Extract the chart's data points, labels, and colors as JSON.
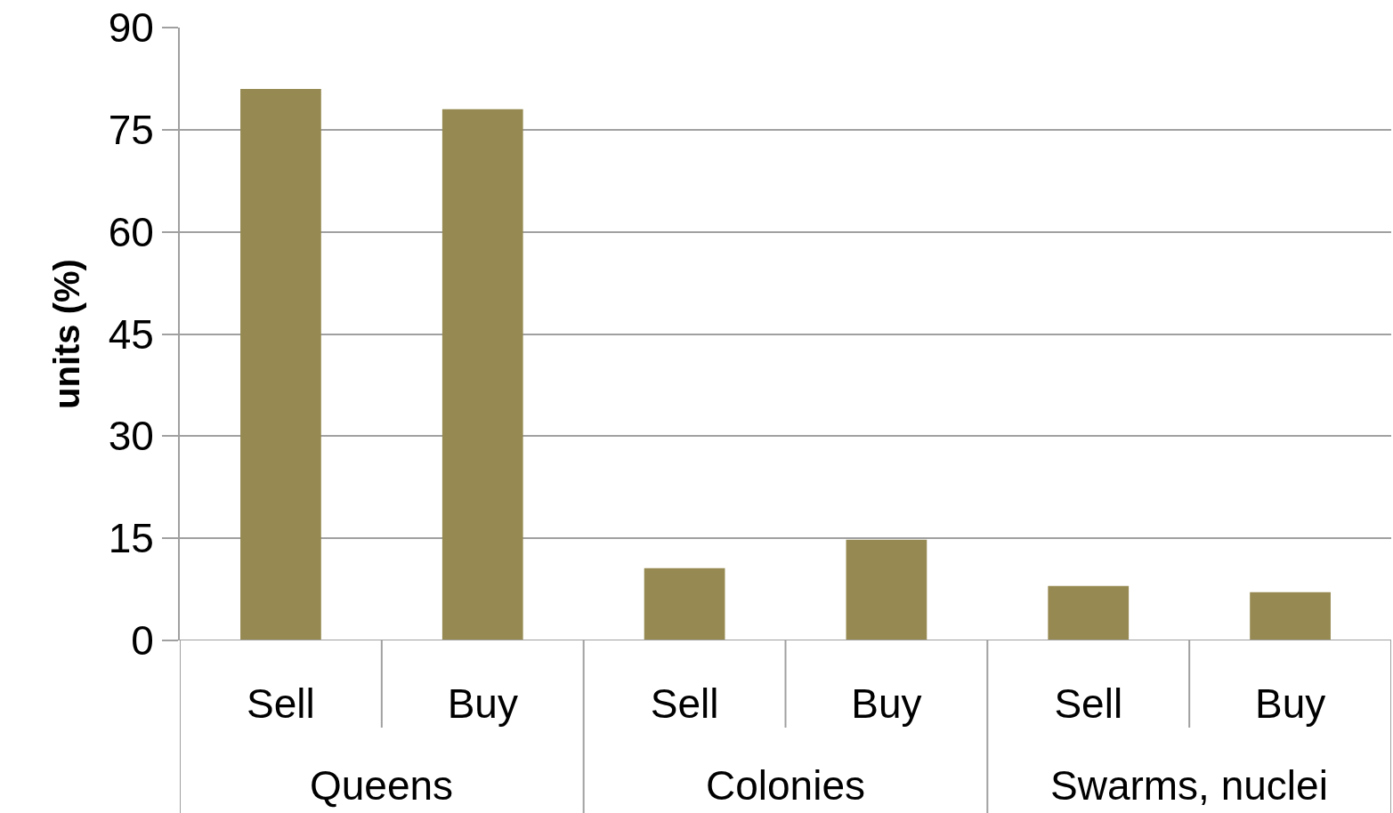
{
  "chart_data": {
    "type": "bar",
    "ylabel": "units (%)",
    "categories": [
      "Sell",
      "Buy",
      "Sell",
      "Buy",
      "Sell",
      "Buy"
    ],
    "values": [
      81,
      78,
      10.6,
      14.8,
      8,
      7.1
    ],
    "color": "#968a52",
    "ylim": [
      0,
      90
    ],
    "yticks": [
      0,
      15,
      30,
      45,
      60,
      75,
      90
    ],
    "grid": "y",
    "legend": false,
    "annotations": [
      "Queens",
      "Colonies",
      "Swarms, nuclei"
    ]
  }
}
